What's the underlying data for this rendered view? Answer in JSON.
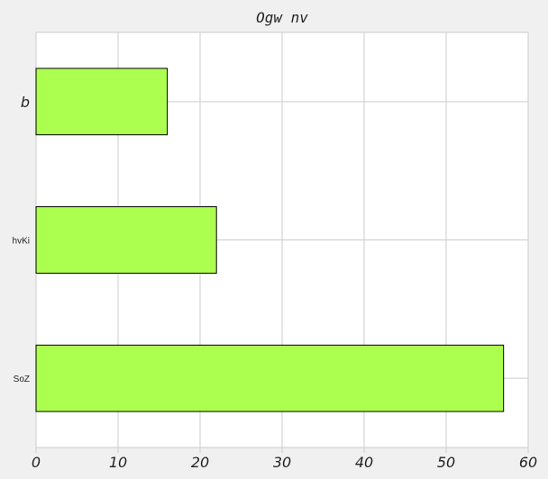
{
  "chart_data": {
    "type": "bar",
    "orientation": "horizontal",
    "title": "Ogw nv",
    "xlabel": "",
    "ylabel": "",
    "categories": [
      "b",
      "hvKi",
      "SoZ"
    ],
    "values": [
      16,
      22,
      57
    ],
    "xlim": [
      0,
      60
    ],
    "xticks": [
      0,
      10,
      20,
      30,
      40,
      50,
      60
    ],
    "grid": true,
    "legend": "none",
    "colors": {
      "bar_fill": "#adff4f",
      "bar_edge": "#000000",
      "plot_bg": "#ffffff",
      "figure_bg": "#f0f0f0",
      "grid": "#cccccc"
    }
  }
}
